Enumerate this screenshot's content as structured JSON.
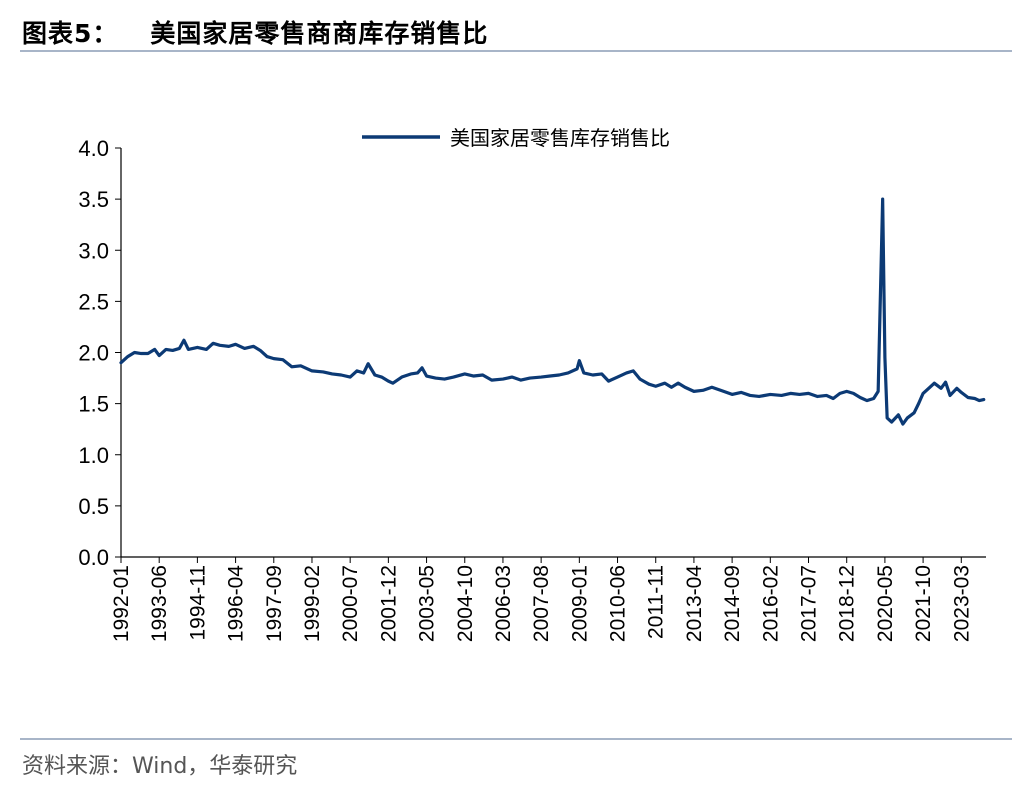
{
  "header": {
    "figure_label": "图表5：",
    "title": "美国家居零售商商库存销售比"
  },
  "footer": {
    "source": "资料来源：Wind，华泰研究"
  },
  "colors": {
    "series": "#0c3a75",
    "rule": "#a8b5c8"
  },
  "chart_data": {
    "type": "line",
    "title": "美国家居零售商商库存销售比",
    "xlabel": "",
    "ylabel": "",
    "ylim": [
      0,
      4.0
    ],
    "yticks": [
      "0.0",
      "0.5",
      "1.0",
      "1.5",
      "2.0",
      "2.5",
      "3.0",
      "3.5",
      "4.0"
    ],
    "grid": false,
    "legend_position": "top-center",
    "x_tick_labels": [
      "1992-01",
      "1993-06",
      "1994-11",
      "1996-04",
      "1997-09",
      "1999-02",
      "2000-07",
      "2001-12",
      "2003-05",
      "2004-10",
      "2006-03",
      "2007-08",
      "2009-01",
      "2010-06",
      "2011-11",
      "2013-04",
      "2014-09",
      "2016-02",
      "2017-07",
      "2018-12",
      "2020-05",
      "2021-10",
      "2023-03"
    ],
    "series": [
      {
        "name": "美国家居零售库存销售比",
        "points": [
          [
            "1992-01",
            1.9
          ],
          [
            "1992-04",
            1.96
          ],
          [
            "1992-07",
            2.0
          ],
          [
            "1992-10",
            1.99
          ],
          [
            "1993-01",
            1.99
          ],
          [
            "1993-04",
            2.03
          ],
          [
            "1993-06",
            1.97
          ],
          [
            "1993-09",
            2.03
          ],
          [
            "1993-12",
            2.02
          ],
          [
            "1994-03",
            2.04
          ],
          [
            "1994-05",
            2.12
          ],
          [
            "1994-07",
            2.03
          ],
          [
            "1994-11",
            2.05
          ],
          [
            "1995-03",
            2.03
          ],
          [
            "1995-06",
            2.09
          ],
          [
            "1995-09",
            2.07
          ],
          [
            "1996-01",
            2.06
          ],
          [
            "1996-04",
            2.08
          ],
          [
            "1996-08",
            2.04
          ],
          [
            "1996-12",
            2.06
          ],
          [
            "1997-03",
            2.02
          ],
          [
            "1997-06",
            1.96
          ],
          [
            "1997-09",
            1.94
          ],
          [
            "1998-01",
            1.93
          ],
          [
            "1998-05",
            1.86
          ],
          [
            "1998-09",
            1.87
          ],
          [
            "1999-02",
            1.82
          ],
          [
            "1999-07",
            1.81
          ],
          [
            "1999-11",
            1.79
          ],
          [
            "2000-03",
            1.78
          ],
          [
            "2000-07",
            1.76
          ],
          [
            "2000-10",
            1.82
          ],
          [
            "2001-01",
            1.8
          ],
          [
            "2001-03",
            1.89
          ],
          [
            "2001-06",
            1.78
          ],
          [
            "2001-09",
            1.76
          ],
          [
            "2001-12",
            1.72
          ],
          [
            "2002-02",
            1.7
          ],
          [
            "2002-06",
            1.76
          ],
          [
            "2002-10",
            1.79
          ],
          [
            "2003-01",
            1.8
          ],
          [
            "2003-03",
            1.85
          ],
          [
            "2003-05",
            1.77
          ],
          [
            "2003-09",
            1.75
          ],
          [
            "2004-01",
            1.74
          ],
          [
            "2004-05",
            1.76
          ],
          [
            "2004-10",
            1.79
          ],
          [
            "2005-02",
            1.77
          ],
          [
            "2005-06",
            1.78
          ],
          [
            "2005-10",
            1.73
          ],
          [
            "2006-03",
            1.74
          ],
          [
            "2006-07",
            1.76
          ],
          [
            "2006-11",
            1.73
          ],
          [
            "2007-03",
            1.75
          ],
          [
            "2007-08",
            1.76
          ],
          [
            "2007-12",
            1.77
          ],
          [
            "2008-04",
            1.78
          ],
          [
            "2008-08",
            1.8
          ],
          [
            "2008-12",
            1.84
          ],
          [
            "2009-01",
            1.92
          ],
          [
            "2009-03",
            1.8
          ],
          [
            "2009-07",
            1.78
          ],
          [
            "2009-11",
            1.79
          ],
          [
            "2010-02",
            1.72
          ],
          [
            "2010-06",
            1.76
          ],
          [
            "2010-10",
            1.8
          ],
          [
            "2011-01",
            1.82
          ],
          [
            "2011-04",
            1.74
          ],
          [
            "2011-08",
            1.69
          ],
          [
            "2011-11",
            1.67
          ],
          [
            "2012-03",
            1.7
          ],
          [
            "2012-06",
            1.66
          ],
          [
            "2012-09",
            1.7
          ],
          [
            "2012-12",
            1.66
          ],
          [
            "2013-04",
            1.62
          ],
          [
            "2013-08",
            1.63
          ],
          [
            "2013-12",
            1.66
          ],
          [
            "2014-04",
            1.63
          ],
          [
            "2014-09",
            1.59
          ],
          [
            "2015-01",
            1.61
          ],
          [
            "2015-05",
            1.58
          ],
          [
            "2015-09",
            1.57
          ],
          [
            "2016-02",
            1.59
          ],
          [
            "2016-07",
            1.58
          ],
          [
            "2016-11",
            1.6
          ],
          [
            "2017-03",
            1.59
          ],
          [
            "2017-07",
            1.6
          ],
          [
            "2017-11",
            1.57
          ],
          [
            "2018-03",
            1.58
          ],
          [
            "2018-06",
            1.55
          ],
          [
            "2018-09",
            1.6
          ],
          [
            "2018-12",
            1.62
          ],
          [
            "2019-03",
            1.6
          ],
          [
            "2019-06",
            1.56
          ],
          [
            "2019-09",
            1.53
          ],
          [
            "2019-12",
            1.55
          ],
          [
            "2020-02",
            1.62
          ],
          [
            "2020-04",
            3.5
          ],
          [
            "2020-05",
            1.95
          ],
          [
            "2020-06",
            1.36
          ],
          [
            "2020-08",
            1.32
          ],
          [
            "2020-11",
            1.39
          ],
          [
            "2021-01",
            1.3
          ],
          [
            "2021-03",
            1.36
          ],
          [
            "2021-06",
            1.41
          ],
          [
            "2021-08",
            1.5
          ],
          [
            "2021-10",
            1.6
          ],
          [
            "2022-01",
            1.66
          ],
          [
            "2022-03",
            1.7
          ],
          [
            "2022-06",
            1.65
          ],
          [
            "2022-08",
            1.71
          ],
          [
            "2022-10",
            1.58
          ],
          [
            "2023-01",
            1.65
          ],
          [
            "2023-03",
            1.61
          ],
          [
            "2023-06",
            1.56
          ],
          [
            "2023-09",
            1.55
          ],
          [
            "2023-11",
            1.53
          ],
          [
            "2024-01",
            1.54
          ]
        ]
      }
    ]
  }
}
